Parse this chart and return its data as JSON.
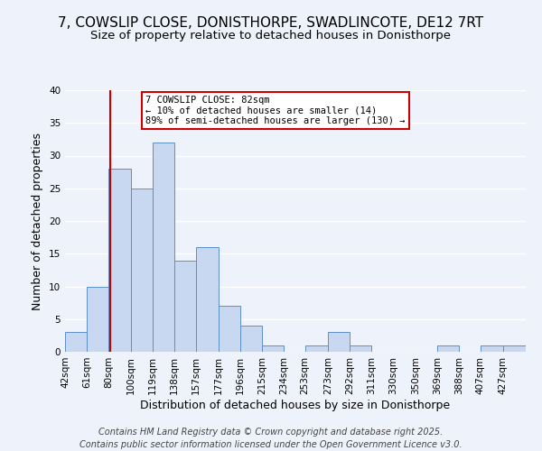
{
  "title": "7, COWSLIP CLOSE, DONISTHORPE, SWADLINCOTE, DE12 7RT",
  "subtitle": "Size of property relative to detached houses in Donisthorpe",
  "xlabel": "Distribution of detached houses by size in Donisthorpe",
  "ylabel": "Number of detached properties",
  "bar_color": "#c8d8f0",
  "bar_edge_color": "#5b8fcc",
  "bin_labels": [
    "42sqm",
    "61sqm",
    "80sqm",
    "100sqm",
    "119sqm",
    "138sqm",
    "157sqm",
    "177sqm",
    "196sqm",
    "215sqm",
    "234sqm",
    "253sqm",
    "273sqm",
    "292sqm",
    "311sqm",
    "330sqm",
    "350sqm",
    "369sqm",
    "388sqm",
    "407sqm",
    "427sqm"
  ],
  "bin_edges": [
    42,
    61,
    80,
    100,
    119,
    138,
    157,
    177,
    196,
    215,
    234,
    253,
    273,
    292,
    311,
    330,
    350,
    369,
    388,
    407,
    427
  ],
  "counts": [
    3,
    10,
    28,
    25,
    32,
    14,
    16,
    7,
    4,
    1,
    0,
    1,
    3,
    1,
    0,
    0,
    0,
    1,
    0,
    1,
    1
  ],
  "vline_x": 82,
  "vline_color": "#cc0000",
  "annotation_line1": "7 COWSLIP CLOSE: 82sqm",
  "annotation_line2": "← 10% of detached houses are smaller (14)",
  "annotation_line3": "89% of semi-detached houses are larger (130) →",
  "annotation_box_color": "#ffffff",
  "annotation_box_edge": "#cc0000",
  "ylim": [
    0,
    40
  ],
  "yticks": [
    0,
    5,
    10,
    15,
    20,
    25,
    30,
    35,
    40
  ],
  "footer1": "Contains HM Land Registry data © Crown copyright and database right 2025.",
  "footer2": "Contains public sector information licensed under the Open Government Licence v3.0.",
  "background_color": "#eef2fb",
  "grid_color": "#ffffff",
  "title_fontsize": 11,
  "subtitle_fontsize": 9.5,
  "axis_label_fontsize": 9,
  "tick_fontsize": 7.5,
  "annotation_fontsize": 7.5,
  "footer_fontsize": 7
}
